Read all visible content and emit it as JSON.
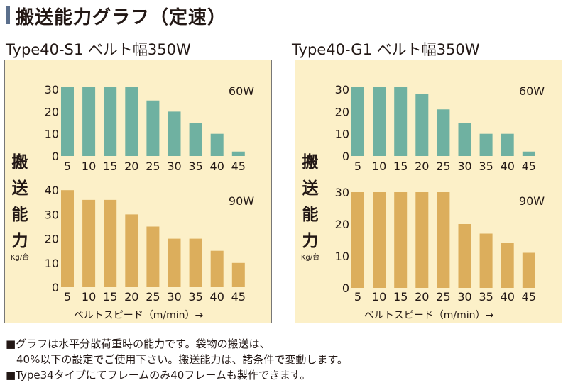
{
  "page_title": "搬送能力グラフ（定速）",
  "notes": [
    "■グラフは水平分散荷重時の能力です。袋物の搬送は、",
    "　40%以下の設定でご使用下さい。搬送能力は、諸条件で変動します。",
    "■Type34タイプにてフレームのみ40フレームも製作できます。"
  ],
  "colors": {
    "teal": "#6fb1a1",
    "gold": "#dcae5c",
    "panel_bg": "#fcf0c8",
    "title_bar": "#5b6f8c"
  },
  "chart_data": [
    {
      "type": "bar",
      "title": "Type40-S1 ベルト幅350W",
      "ylabel_chars": [
        "搬",
        "送",
        "能",
        "力"
      ],
      "yunit": "Kg/台",
      "xlabel": "ベルトスピード（m/min）→",
      "categories": [
        "5",
        "10",
        "15",
        "20",
        "25",
        "30",
        "35",
        "40",
        "45"
      ],
      "series": [
        {
          "name": "60W",
          "values": [
            31,
            31,
            31,
            31,
            25,
            20,
            15,
            10,
            2
          ],
          "ylim": [
            0,
            30
          ],
          "yticks": [
            "30",
            "20",
            "10",
            "0"
          ],
          "color": "#6fb1a1"
        },
        {
          "name": "90W",
          "values": [
            40,
            36,
            36,
            30,
            25,
            20,
            20,
            15,
            10
          ],
          "ylim": [
            0,
            40
          ],
          "yticks": [
            "40",
            "30",
            "20",
            "10",
            "0"
          ],
          "color": "#dcae5c"
        }
      ]
    },
    {
      "type": "bar",
      "title": "Type40-G1 ベルト幅350W",
      "ylabel_chars": [
        "搬",
        "送",
        "能",
        "力"
      ],
      "yunit": "Kg/台",
      "xlabel": "ベルトスピード（m/min）→",
      "categories": [
        "5",
        "10",
        "15",
        "20",
        "25",
        "30",
        "35",
        "40",
        "45"
      ],
      "series": [
        {
          "name": "60W",
          "values": [
            31,
            31,
            31,
            28,
            21,
            15,
            10,
            10,
            2
          ],
          "ylim": [
            0,
            30
          ],
          "yticks": [
            "30",
            "20",
            "10",
            "0"
          ],
          "color": "#6fb1a1"
        },
        {
          "name": "90W",
          "values": [
            30,
            30,
            30,
            30,
            30,
            20,
            17,
            14,
            11
          ],
          "ylim": [
            0,
            30
          ],
          "yticks": [
            "30",
            "20",
            "10",
            "0"
          ],
          "color": "#dcae5c"
        }
      ]
    }
  ]
}
